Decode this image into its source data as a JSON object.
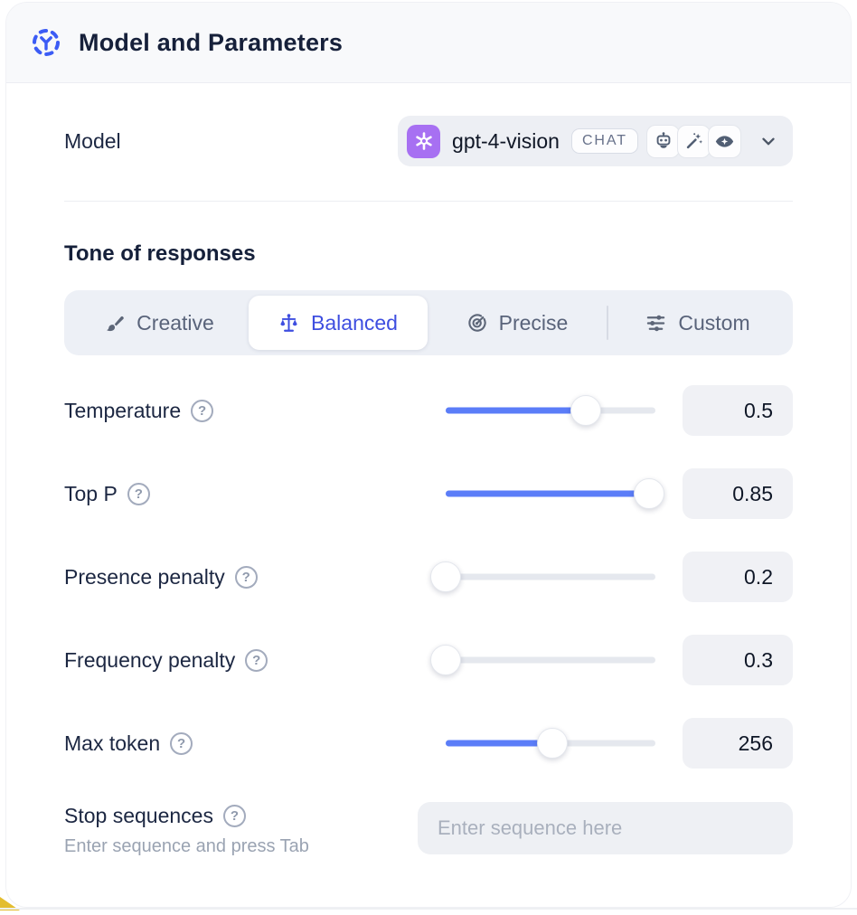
{
  "header": {
    "title": "Model and Parameters",
    "icon": "model-hub-icon"
  },
  "model_row": {
    "label": "Model",
    "provider_icon": "openai-logo",
    "selected_model": "gpt-4-vision",
    "type_badge": "CHAT",
    "capability_icons": [
      "robot-icon",
      "magic-wand-icon",
      "vision-eye-icon"
    ],
    "expander_icon": "chevron-down-icon"
  },
  "tone": {
    "heading": "Tone of responses",
    "options": [
      {
        "label": "Creative",
        "icon": "paintbrush-icon",
        "selected": false,
        "divider_before": false
      },
      {
        "label": "Balanced",
        "icon": "balance-scale-icon",
        "selected": true,
        "divider_before": false
      },
      {
        "label": "Precise",
        "icon": "target-icon",
        "selected": false,
        "divider_before": false
      },
      {
        "label": "Custom",
        "icon": "sliders-icon",
        "selected": false,
        "divider_before": true
      }
    ]
  },
  "params": [
    {
      "label": "Temperature",
      "value": "0.5",
      "fill_pct": 67,
      "help_icon": "question-mark-icon"
    },
    {
      "label": "Top P",
      "value": "0.85",
      "fill_pct": 97,
      "help_icon": "question-mark-icon"
    },
    {
      "label": "Presence penalty",
      "value": "0.2",
      "fill_pct": 0,
      "help_icon": "question-mark-icon"
    },
    {
      "label": "Frequency penalty",
      "value": "0.3",
      "fill_pct": 0,
      "help_icon": "question-mark-icon"
    },
    {
      "label": "Max token",
      "value": "256",
      "fill_pct": 51,
      "help_icon": "question-mark-icon"
    }
  ],
  "stop_sequences": {
    "label": "Stop sequences",
    "help_icon": "question-mark-icon",
    "hint": "Enter sequence and press Tab",
    "placeholder": "Enter sequence here"
  },
  "colors": {
    "accent_blue": "#5b7df8",
    "selected_indigo": "#3e4ee0",
    "provider_purple": "#a770f2",
    "header_bg": "#f8f9fb",
    "control_bg": "#edeff4"
  }
}
